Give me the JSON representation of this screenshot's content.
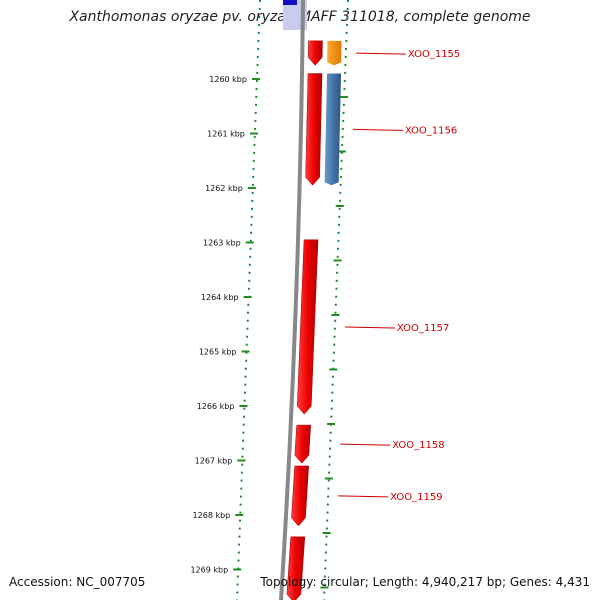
{
  "title": "Xanthomonas oryzae pv. oryzae MAFF 311018, complete genome",
  "footer": {
    "accession": "Accession: NC_007705",
    "topology": "Topology: circular; Length: 4,940,217 bp; Genes: 4,431"
  },
  "colors": {
    "gene_red": "#ee0000",
    "gene_orange": "#ff8c00",
    "gene_blue": "#4477aa",
    "backbone": "#888888",
    "ticks": "#228b22",
    "label": "#cc0000",
    "top_block_dark": "#1010c0",
    "top_block_light": "#c8ccee"
  },
  "chart_data": {
    "type": "genome-map",
    "ticks": [
      {
        "kbp": 1260,
        "label": "1260 kbp"
      },
      {
        "kbp": 1261,
        "label": "1261 kbp"
      },
      {
        "kbp": 1262,
        "label": "1262 kbp"
      },
      {
        "kbp": 1263,
        "label": "1263 kbp"
      },
      {
        "kbp": 1264,
        "label": "1264 kbp"
      },
      {
        "kbp": 1265,
        "label": "1265 kbp"
      },
      {
        "kbp": 1266,
        "label": "1266 kbp"
      },
      {
        "kbp": 1267,
        "label": "1267 kbp"
      },
      {
        "kbp": 1268,
        "label": "1268 kbp"
      },
      {
        "kbp": 1269,
        "label": "1269 kbp"
      }
    ],
    "genes": [
      {
        "name": "XOO_1155",
        "start_kbp": 1259.3,
        "end_kbp": 1259.75,
        "strand": "-"
      },
      {
        "name": "XOO_1156",
        "start_kbp": 1259.9,
        "end_kbp": 1261.95,
        "strand": "-"
      },
      {
        "name": "XOO_1157",
        "start_kbp": 1262.95,
        "end_kbp": 1266.15,
        "strand": "-"
      },
      {
        "name": "XOO_1158",
        "start_kbp": 1266.35,
        "end_kbp": 1267.05,
        "strand": "-"
      },
      {
        "name": "XOO_1159",
        "start_kbp": 1267.1,
        "end_kbp": 1268.2,
        "strand": "-"
      },
      {
        "name": "",
        "start_kbp": 1268.4,
        "end_kbp": 1269.6,
        "strand": "-"
      }
    ],
    "features": [
      {
        "type": "rRNA-like",
        "start_kbp": 1259.3,
        "end_kbp": 1259.75,
        "color": "orange"
      },
      {
        "type": "mRNA-like",
        "start_kbp": 1259.9,
        "end_kbp": 1261.95,
        "color": "blue"
      }
    ]
  }
}
